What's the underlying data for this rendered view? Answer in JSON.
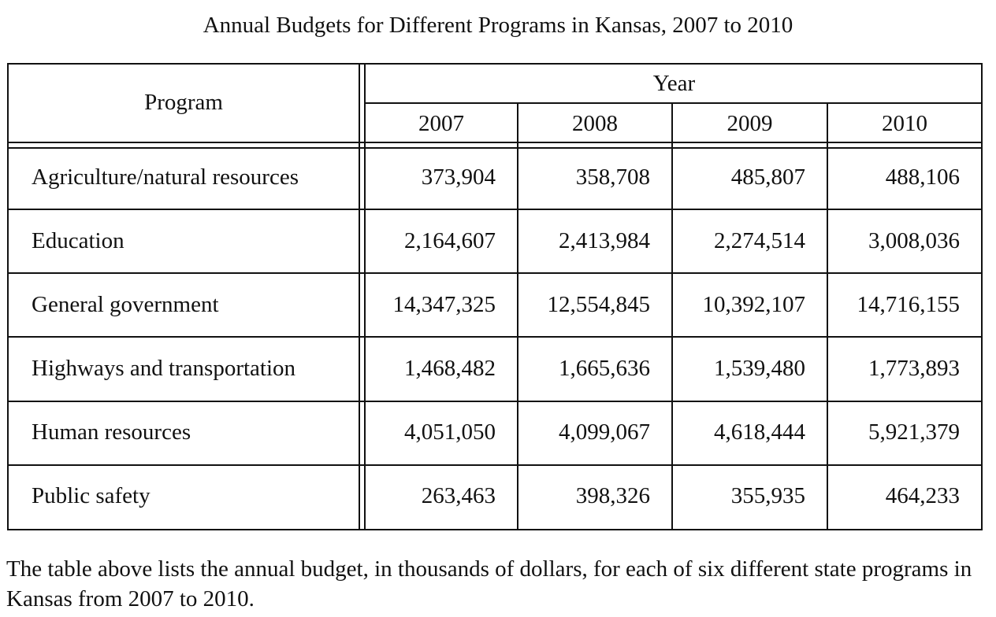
{
  "chart_data": {
    "type": "table",
    "title": "Annual Budgets for Different Programs in Kansas, 2007 to 2010",
    "header": {
      "program_label": "Program",
      "year_label": "Year",
      "years": [
        "2007",
        "2008",
        "2009",
        "2010"
      ]
    },
    "rows": [
      {
        "program": "Agriculture/natural resources",
        "values": [
          "373,904",
          "358,708",
          "485,807",
          "488,106"
        ]
      },
      {
        "program": "Education",
        "values": [
          "2,164,607",
          "2,413,984",
          "2,274,514",
          "3,008,036"
        ]
      },
      {
        "program": "General government",
        "values": [
          "14,347,325",
          "12,554,845",
          "10,392,107",
          "14,716,155"
        ]
      },
      {
        "program": "Highways and transportation",
        "values": [
          "1,468,482",
          "1,665,636",
          "1,539,480",
          "1,773,893"
        ]
      },
      {
        "program": "Human resources",
        "values": [
          "4,051,050",
          "4,099,067",
          "4,618,444",
          "5,921,379"
        ]
      },
      {
        "program": "Public safety",
        "values": [
          "263,463",
          "398,326",
          "355,935",
          "464,233"
        ]
      }
    ],
    "caption": "The table above lists the annual budget, in thousands of dollars, for each of six different state programs in Kansas from 2007 to 2010."
  }
}
